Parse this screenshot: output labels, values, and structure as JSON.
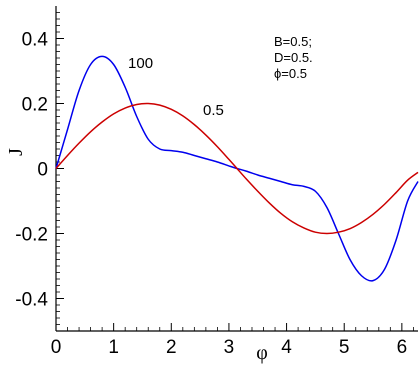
{
  "chart_data": {
    "type": "line",
    "xlabel": "φ",
    "ylabel": "J",
    "xlim": [
      0,
      6.28
    ],
    "ylim": [
      -0.5,
      0.5
    ],
    "x_ticks": [
      0,
      1,
      2,
      3,
      4,
      5,
      6
    ],
    "x_tick_labels": [
      "0",
      "1",
      "2",
      "3",
      "4",
      "5",
      "6"
    ],
    "y_ticks": [
      -0.4,
      -0.2,
      0,
      0.2,
      0.4
    ],
    "y_tick_labels": [
      "-0.4",
      "-0.2",
      "0",
      "0.2",
      "0.4"
    ],
    "grid": false,
    "series": [
      {
        "name": "100",
        "color": "#0000ee",
        "x": [
          0,
          0.2,
          0.4,
          0.6,
          0.8,
          1.0,
          1.2,
          1.4,
          1.6,
          1.8,
          2.0,
          2.2,
          2.4,
          2.6,
          2.8,
          3.0,
          3.14,
          3.3,
          3.5,
          3.7,
          3.9,
          4.1,
          4.3,
          4.5,
          4.7,
          4.9,
          5.1,
          5.3,
          5.5,
          5.7,
          5.9,
          6.1,
          6.28
        ],
        "y": [
          0.0,
          0.12,
          0.24,
          0.32,
          0.345,
          0.32,
          0.25,
          0.16,
          0.09,
          0.06,
          0.055,
          0.05,
          0.04,
          0.03,
          0.02,
          0.008,
          0.0,
          -0.008,
          -0.02,
          -0.03,
          -0.04,
          -0.05,
          -0.055,
          -0.07,
          -0.12,
          -0.2,
          -0.28,
          -0.33,
          -0.345,
          -0.31,
          -0.22,
          -0.1,
          -0.04
        ]
      },
      {
        "name": "0.5",
        "color": "#cc0000",
        "x": [
          0,
          0.2,
          0.4,
          0.6,
          0.8,
          1.0,
          1.2,
          1.4,
          1.6,
          1.8,
          2.0,
          2.2,
          2.4,
          2.6,
          2.8,
          3.0,
          3.14,
          3.3,
          3.5,
          3.7,
          3.9,
          4.1,
          4.3,
          4.5,
          4.7,
          4.9,
          5.1,
          5.3,
          5.5,
          5.7,
          5.9,
          6.1,
          6.28
        ],
        "y": [
          0.0,
          0.04,
          0.078,
          0.113,
          0.143,
          0.168,
          0.186,
          0.197,
          0.2,
          0.195,
          0.182,
          0.162,
          0.135,
          0.103,
          0.067,
          0.028,
          0.0,
          -0.032,
          -0.07,
          -0.106,
          -0.138,
          -0.164,
          -0.183,
          -0.196,
          -0.2,
          -0.196,
          -0.185,
          -0.166,
          -0.141,
          -0.11,
          -0.074,
          -0.036,
          -0.012
        ]
      }
    ],
    "annotations": [
      {
        "text": "100",
        "x": 1.25,
        "y": 0.31
      },
      {
        "text": "0.5",
        "x": 2.55,
        "y": 0.165
      }
    ],
    "parameters": [
      "B=0.5;",
      "D=0.5.",
      "ϕ=0.5"
    ]
  }
}
